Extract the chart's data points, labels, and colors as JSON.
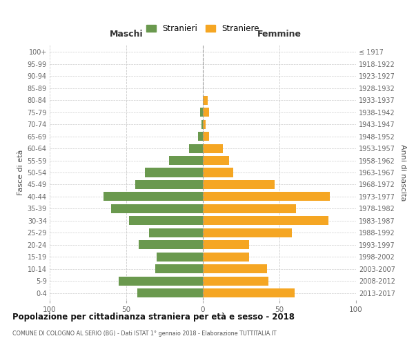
{
  "age_groups": [
    "0-4",
    "5-9",
    "10-14",
    "15-19",
    "20-24",
    "25-29",
    "30-34",
    "35-39",
    "40-44",
    "45-49",
    "50-54",
    "55-59",
    "60-64",
    "65-69",
    "70-74",
    "75-79",
    "80-84",
    "85-89",
    "90-94",
    "95-99",
    "100+"
  ],
  "birth_years": [
    "2013-2017",
    "2008-2012",
    "2003-2007",
    "1998-2002",
    "1993-1997",
    "1988-1992",
    "1983-1987",
    "1978-1982",
    "1973-1977",
    "1968-1972",
    "1963-1967",
    "1958-1962",
    "1953-1957",
    "1948-1952",
    "1943-1947",
    "1938-1942",
    "1933-1937",
    "1928-1932",
    "1923-1927",
    "1918-1922",
    "≤ 1917"
  ],
  "maschi": [
    43,
    55,
    31,
    30,
    42,
    35,
    48,
    60,
    65,
    44,
    38,
    22,
    9,
    3,
    1,
    2,
    0,
    0,
    0,
    0,
    0
  ],
  "femmine": [
    60,
    43,
    42,
    30,
    30,
    58,
    82,
    61,
    83,
    47,
    20,
    17,
    13,
    4,
    2,
    4,
    3,
    0,
    0,
    0,
    0
  ],
  "color_maschi": "#6a994e",
  "color_femmine": "#f5a623",
  "title": "Popolazione per cittadinanza straniera per età e sesso - 2018",
  "subtitle": "COMUNE DI COLOGNO AL SERIO (BG) - Dati ISTAT 1° gennaio 2018 - Elaborazione TUTTITALIA.IT",
  "xlabel_left": "Maschi",
  "xlabel_right": "Femmine",
  "ylabel_left": "Fasce di età",
  "ylabel_right": "Anni di nascita",
  "xlim": 100,
  "legend_maschi": "Stranieri",
  "legend_femmine": "Straniere",
  "background_color": "#ffffff",
  "grid_color": "#cccccc",
  "bar_height": 0.75
}
